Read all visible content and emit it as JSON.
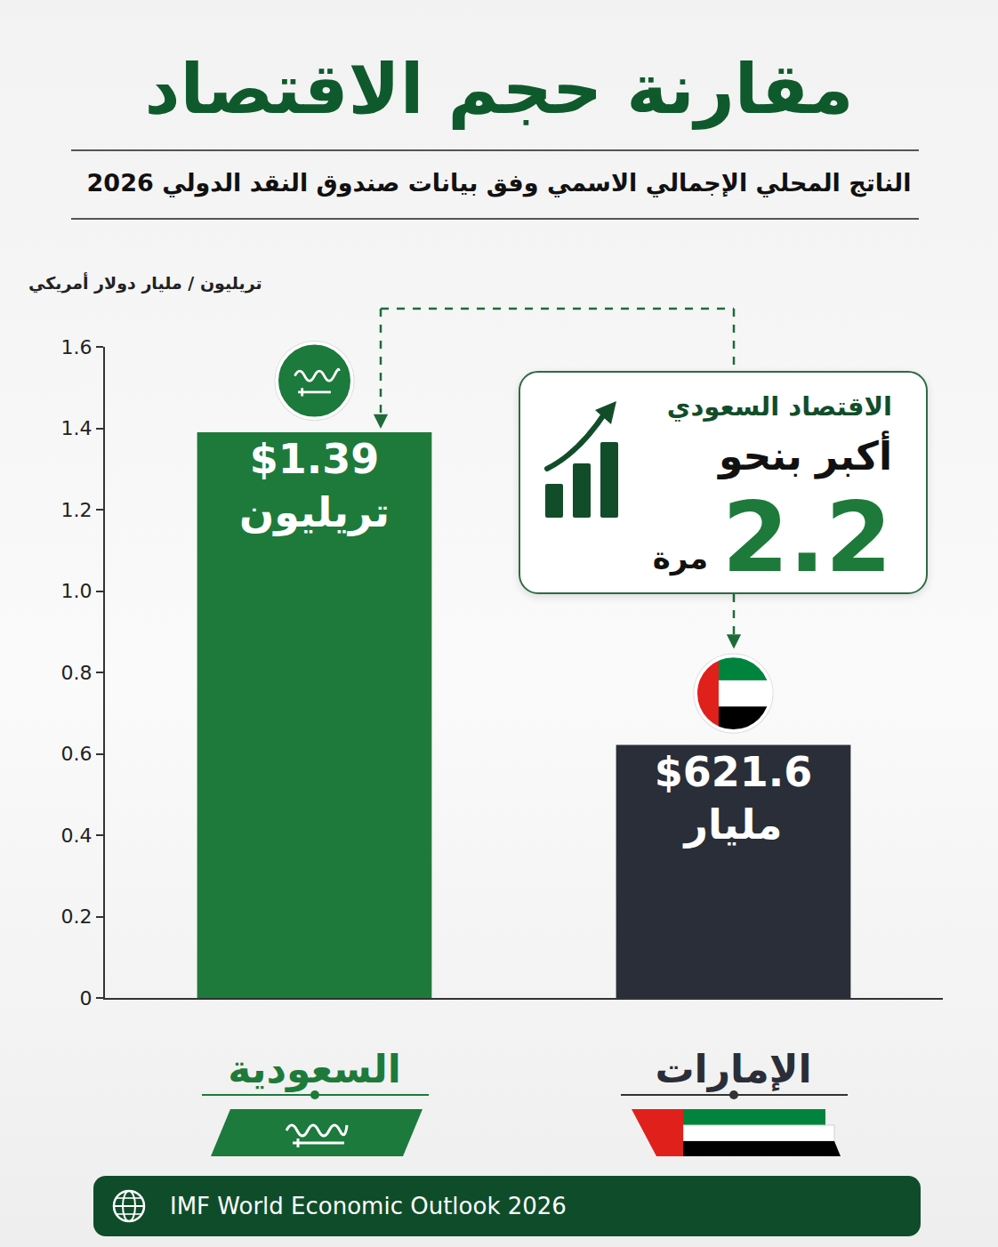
{
  "chart_data": {
    "type": "bar",
    "title": "مقارنة حجم الاقتصاد",
    "subtitle": "الناتج المحلي الإجمالي الاسمي وفق بيانات صندوق النقد الدولي 2026",
    "ylabel": "تريليون / مليار دولار أمريكي",
    "categories": [
      "السعودية",
      "الإمارات"
    ],
    "values": [
      1.39,
      0.6216
    ],
    "value_labels": [
      "$1.39 تريليون",
      "$621.6 مليار"
    ],
    "colors": [
      "#1e7a3a",
      "#2a2e38"
    ],
    "ylim": [
      0,
      1.6
    ],
    "yticks": [
      0,
      0.2,
      0.4,
      0.6,
      0.8,
      {
        "value": 1,
        "label": "1.0"
      },
      1.2,
      1.4,
      1.6
    ],
    "grid": false,
    "data_labels": true,
    "callout": {
      "heading": "الاقتصاد السعودي",
      "text": "أكبر بنحو",
      "value": 2.2,
      "unit": "مرة"
    },
    "source": "IMF World Economic Outlook 2026"
  }
}
